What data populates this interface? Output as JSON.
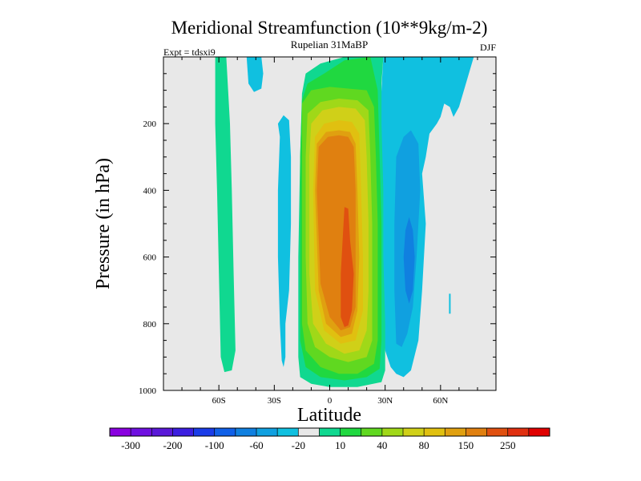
{
  "chart_data": {
    "type": "contour",
    "title": "Meridional Streamfunction (10**9kg/m-2)",
    "subtitle": "Rupelian  31MaBP",
    "left_label": "Expt = tdsxi9",
    "right_label": "DJF",
    "xlabel": "Latitude",
    "ylabel": "Pressure (in hPa)",
    "xlim": [
      -90,
      90
    ],
    "ylim": [
      1000,
      0
    ],
    "x_ticks": [
      {
        "value": -60,
        "label": "60S"
      },
      {
        "value": -30,
        "label": "30S"
      },
      {
        "value": 0,
        "label": "0"
      },
      {
        "value": 30,
        "label": "30N"
      },
      {
        "value": 60,
        "label": "60N"
      }
    ],
    "y_ticks": [
      {
        "value": 200,
        "label": "200"
      },
      {
        "value": 400,
        "label": "400"
      },
      {
        "value": 600,
        "label": "600"
      },
      {
        "value": 800,
        "label": "800"
      },
      {
        "value": 1000,
        "label": "1000"
      }
    ],
    "colorbar": {
      "colors": [
        "#8a00e0",
        "#6f10e0",
        "#5a18d8",
        "#3c1ee0",
        "#1a3ce8",
        "#1060e8",
        "#1080e0",
        "#10a0e0",
        "#10c0e0",
        "#e8e8e8",
        "#10d890",
        "#20d840",
        "#60d820",
        "#a0d818",
        "#d0d018",
        "#e0c010",
        "#e0a010",
        "#e08010",
        "#e05010",
        "#e03010",
        "#e00000"
      ],
      "labels": [
        {
          "index": 1,
          "text": "-300"
        },
        {
          "index": 3,
          "text": "-200"
        },
        {
          "index": 5,
          "text": "-100"
        },
        {
          "index": 7,
          "text": "-60"
        },
        {
          "index": 9,
          "text": "-20"
        },
        {
          "index": 11,
          "text": "10"
        },
        {
          "index": 13,
          "text": "40"
        },
        {
          "index": 15,
          "text": "80"
        },
        {
          "index": 17,
          "text": "150"
        },
        {
          "index": 19,
          "text": "250"
        }
      ]
    },
    "background_color": "#e8e8e8",
    "contours": [
      {
        "name": "sh-positive-band",
        "level": 10,
        "color": "#10d890",
        "points": [
          [
            -62,
            0
          ],
          [
            -56,
            0
          ],
          [
            -55,
            100
          ],
          [
            -54,
            200
          ],
          [
            -53,
            400
          ],
          [
            -52,
            650
          ],
          [
            -51,
            880
          ],
          [
            -53,
            940
          ],
          [
            -57,
            945
          ],
          [
            -59,
            900
          ],
          [
            -60,
            650
          ],
          [
            -61,
            400
          ],
          [
            -62,
            200
          ]
        ]
      },
      {
        "name": "sh-negative-tongue",
        "level": -20,
        "color": "#10c0e0",
        "points": [
          [
            -45,
            0
          ],
          [
            -37,
            0
          ],
          [
            -36,
            50
          ],
          [
            -37,
            95
          ],
          [
            -41,
            105
          ],
          [
            -44,
            80
          ]
        ]
      },
      {
        "name": "sh-negative-column",
        "level": -20,
        "color": "#10c0e0",
        "points": [
          [
            -27,
            240
          ],
          [
            -28,
            200
          ],
          [
            -25,
            175
          ],
          [
            -22,
            190
          ],
          [
            -21,
            300
          ],
          [
            -21,
            500
          ],
          [
            -22,
            700
          ],
          [
            -24,
            800
          ],
          [
            -24,
            900
          ],
          [
            -25,
            930
          ],
          [
            -26,
            910
          ],
          [
            -27,
            800
          ],
          [
            -28,
            600
          ],
          [
            -28,
            400
          ]
        ]
      },
      {
        "name": "nh-negative-outer",
        "level": -20,
        "color": "#10c0e0",
        "points": [
          [
            29,
            0
          ],
          [
            55,
            0
          ],
          [
            62,
            0
          ],
          [
            68,
            0
          ],
          [
            78,
            0
          ],
          [
            70,
            150
          ],
          [
            67,
            180
          ],
          [
            65,
            150
          ],
          [
            62,
            140
          ],
          [
            60,
            180
          ],
          [
            58,
            200
          ],
          [
            54,
            230
          ],
          [
            52,
            300
          ],
          [
            50,
            350
          ],
          [
            52,
            500
          ],
          [
            50,
            700
          ],
          [
            48,
            850
          ],
          [
            44,
            940
          ],
          [
            40,
            960
          ],
          [
            36,
            950
          ],
          [
            33,
            930
          ],
          [
            30,
            880
          ],
          [
            28,
            700
          ],
          [
            27,
            500
          ],
          [
            26,
            300
          ],
          [
            27,
            200
          ],
          [
            28,
            100
          ]
        ]
      },
      {
        "name": "nh-negative-inner",
        "level": -60,
        "color": "#10a0e0",
        "points": [
          [
            36,
            300
          ],
          [
            40,
            240
          ],
          [
            44,
            220
          ],
          [
            48,
            260
          ],
          [
            49,
            400
          ],
          [
            47,
            600
          ],
          [
            45,
            750
          ],
          [
            42,
            830
          ],
          [
            39,
            870
          ],
          [
            36,
            860
          ],
          [
            35,
            700
          ],
          [
            35,
            500
          ]
        ]
      },
      {
        "name": "nh-negative-core",
        "level": -100,
        "color": "#1080e0",
        "points": [
          [
            41,
            520
          ],
          [
            43,
            480
          ],
          [
            45,
            520
          ],
          [
            46,
            600
          ],
          [
            45,
            700
          ],
          [
            43,
            740
          ],
          [
            41,
            700
          ],
          [
            40,
            600
          ]
        ]
      },
      {
        "name": "main-cell-10",
        "level": 10,
        "color": "#10d890",
        "points": [
          [
            -15,
            110
          ],
          [
            -13,
            50
          ],
          [
            -5,
            20
          ],
          [
            8,
            0
          ],
          [
            29,
            0
          ],
          [
            28,
            80
          ],
          [
            28,
            200
          ],
          [
            29,
            400
          ],
          [
            29,
            600
          ],
          [
            30,
            800
          ],
          [
            30,
            940
          ],
          [
            28,
            975
          ],
          [
            15,
            990
          ],
          [
            0,
            990
          ],
          [
            -10,
            980
          ],
          [
            -16,
            960
          ],
          [
            -17,
            900
          ],
          [
            -17,
            600
          ],
          [
            -16,
            300
          ]
        ]
      },
      {
        "name": "main-cell-40",
        "level": 40,
        "color": "#20d840",
        "points": [
          [
            -15,
            130
          ],
          [
            -12,
            80
          ],
          [
            -3,
            50
          ],
          [
            8,
            10
          ],
          [
            22,
            0
          ],
          [
            26,
            100
          ],
          [
            27,
            300
          ],
          [
            28,
            500
          ],
          [
            28,
            700
          ],
          [
            28,
            850
          ],
          [
            27,
            935
          ],
          [
            20,
            960
          ],
          [
            8,
            970
          ],
          [
            -5,
            960
          ],
          [
            -13,
            930
          ],
          [
            -16,
            850
          ],
          [
            -16,
            600
          ],
          [
            -16,
            300
          ]
        ]
      },
      {
        "name": "main-cell-60",
        "level": 60,
        "color": "#60d820",
        "points": [
          [
            -15,
            140
          ],
          [
            -10,
            100
          ],
          [
            0,
            90
          ],
          [
            10,
            95
          ],
          [
            20,
            100
          ],
          [
            24,
            150
          ],
          [
            25,
            300
          ],
          [
            26,
            500
          ],
          [
            26,
            700
          ],
          [
            26,
            850
          ],
          [
            24,
            920
          ],
          [
            15,
            950
          ],
          [
            5,
            950
          ],
          [
            -5,
            930
          ],
          [
            -13,
            880
          ],
          [
            -15,
            800
          ],
          [
            -15,
            600
          ],
          [
            -15,
            300
          ]
        ]
      },
      {
        "name": "main-cell-80",
        "level": 80,
        "color": "#a0d818",
        "points": [
          [
            -12,
            170
          ],
          [
            -5,
            135
          ],
          [
            5,
            125
          ],
          [
            15,
            130
          ],
          [
            21,
            160
          ],
          [
            22,
            300
          ],
          [
            23,
            500
          ],
          [
            23,
            700
          ],
          [
            23,
            850
          ],
          [
            20,
            900
          ],
          [
            10,
            915
          ],
          [
            0,
            900
          ],
          [
            -8,
            870
          ],
          [
            -12,
            800
          ],
          [
            -13,
            600
          ],
          [
            -13,
            300
          ]
        ]
      },
      {
        "name": "main-cell-100",
        "level": 100,
        "color": "#d0d018",
        "points": [
          [
            -10,
            200
          ],
          [
            -4,
            160
          ],
          [
            5,
            150
          ],
          [
            14,
            155
          ],
          [
            19,
            190
          ],
          [
            20,
            300
          ],
          [
            21,
            500
          ],
          [
            21,
            700
          ],
          [
            20,
            820
          ],
          [
            16,
            880
          ],
          [
            8,
            890
          ],
          [
            -2,
            860
          ],
          [
            -9,
            800
          ],
          [
            -11,
            650
          ],
          [
            -11,
            300
          ]
        ]
      },
      {
        "name": "main-cell-150",
        "level": 150,
        "color": "#e0c010",
        "points": [
          [
            -8,
            240
          ],
          [
            -3,
            200
          ],
          [
            5,
            190
          ],
          [
            12,
            195
          ],
          [
            16,
            230
          ],
          [
            17,
            400
          ],
          [
            18,
            600
          ],
          [
            18,
            760
          ],
          [
            14,
            850
          ],
          [
            6,
            860
          ],
          [
            -3,
            820
          ],
          [
            -8,
            700
          ],
          [
            -9,
            400
          ]
        ]
      },
      {
        "name": "main-cell-200",
        "level": 200,
        "color": "#e0a010",
        "points": [
          [
            -7,
            260
          ],
          [
            -2,
            225
          ],
          [
            5,
            220
          ],
          [
            11,
            225
          ],
          [
            14,
            260
          ],
          [
            15,
            400
          ],
          [
            16,
            600
          ],
          [
            15,
            760
          ],
          [
            12,
            830
          ],
          [
            6,
            840
          ],
          [
            -2,
            800
          ],
          [
            -6,
            700
          ],
          [
            -8,
            400
          ]
        ]
      },
      {
        "name": "main-cell-250",
        "level": 250,
        "color": "#e08010",
        "points": [
          [
            -6,
            270
          ],
          [
            -1,
            240
          ],
          [
            5,
            235
          ],
          [
            10,
            240
          ],
          [
            13,
            270
          ],
          [
            14,
            400
          ],
          [
            14,
            600
          ],
          [
            14,
            750
          ],
          [
            11,
            810
          ],
          [
            6,
            820
          ],
          [
            0,
            780
          ],
          [
            -5,
            680
          ],
          [
            -7,
            400
          ]
        ]
      },
      {
        "name": "main-cell-core",
        "level": 300,
        "color": "#e05010",
        "points": [
          [
            8,
            450
          ],
          [
            10,
            455
          ],
          [
            11,
            550
          ],
          [
            13,
            650
          ],
          [
            12,
            760
          ],
          [
            10,
            805
          ],
          [
            8,
            810
          ],
          [
            6,
            780
          ],
          [
            6,
            650
          ],
          [
            7,
            550
          ]
        ]
      }
    ],
    "lines": [
      {
        "name": "nh-negative-sliver",
        "level": -20,
        "color": "#10c0e0",
        "points": [
          [
            65,
            710
          ],
          [
            65,
            770
          ]
        ]
      }
    ]
  }
}
